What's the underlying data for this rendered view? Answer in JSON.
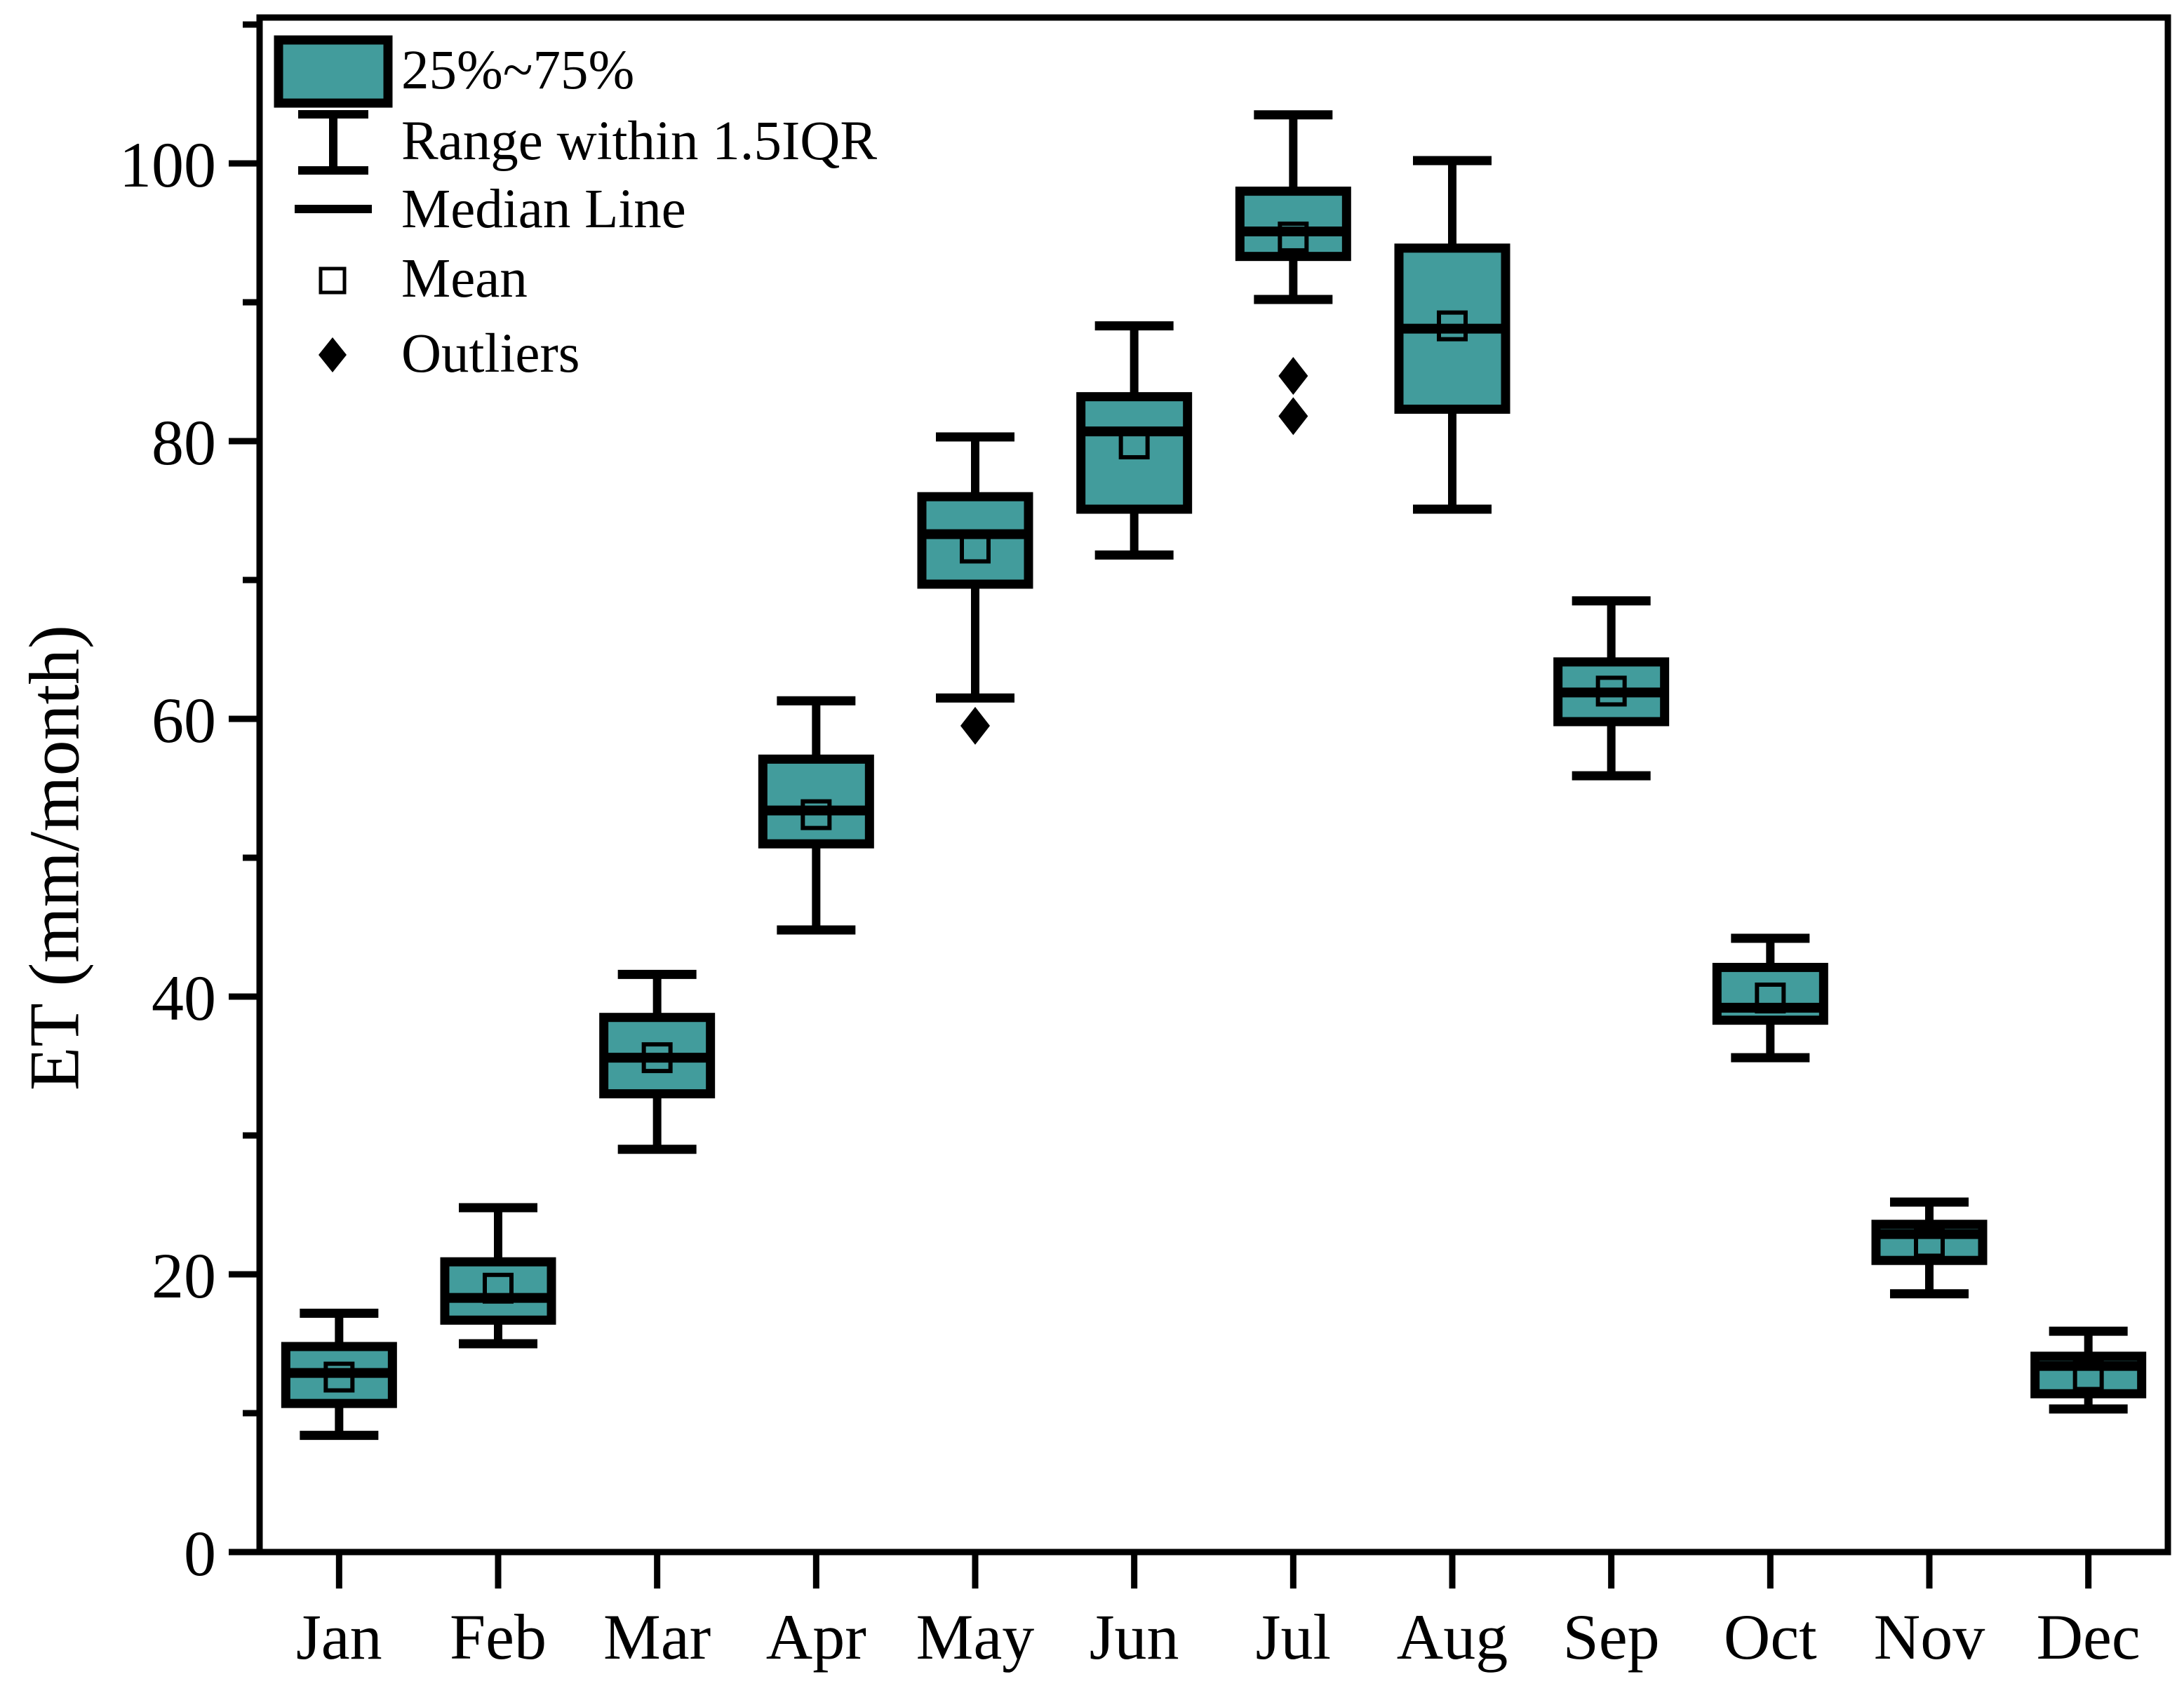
{
  "figure": {
    "background": "#ffffff"
  },
  "colors": {
    "box_fill": "#429C9C",
    "stroke": "#000000"
  },
  "chart_data": {
    "type": "boxplot",
    "title": "",
    "xlabel": "",
    "ylabel": "ET (mm/month)",
    "ylim": [
      0,
      110.5
    ],
    "yticks_major": [
      0,
      20,
      40,
      60,
      80,
      100
    ],
    "yticks_minor": [
      10,
      30,
      50,
      70,
      90,
      110
    ],
    "grid": false,
    "legend_position": "upper-left-inside",
    "legend_labels": [
      "25%~75%",
      "Range within 1.5IQR",
      "Median Line",
      "Mean",
      "Outliers"
    ],
    "categories": [
      "Jan",
      "Feb",
      "Mar",
      "Apr",
      "May",
      "Jun",
      "Jul",
      "Aug",
      "Sep",
      "Oct",
      "Nov",
      "Dec"
    ],
    "boxes": [
      {
        "month": "Jan",
        "whisker_low": 8.4,
        "q1": 10.7,
        "median": 12.9,
        "mean": 12.6,
        "q3": 14.8,
        "whisker_high": 17.2,
        "outliers": []
      },
      {
        "month": "Feb",
        "whisker_low": 15.0,
        "q1": 16.7,
        "median": 18.3,
        "mean": 19.0,
        "q3": 20.9,
        "whisker_high": 24.8,
        "outliers": []
      },
      {
        "month": "Mar",
        "whisker_low": 29.0,
        "q1": 33.0,
        "median": 35.6,
        "mean": 35.6,
        "q3": 38.5,
        "whisker_high": 41.6,
        "outliers": []
      },
      {
        "month": "Apr",
        "whisker_low": 44.8,
        "q1": 51.0,
        "median": 53.4,
        "mean": 53.1,
        "q3": 57.1,
        "whisker_high": 61.3,
        "outliers": []
      },
      {
        "month": "May",
        "whisker_low": 61.5,
        "q1": 69.7,
        "median": 73.3,
        "mean": 72.3,
        "q3": 76.0,
        "whisker_high": 80.3,
        "outliers": [
          59.5
        ]
      },
      {
        "month": "Jun",
        "whisker_low": 71.8,
        "q1": 75.1,
        "median": 80.7,
        "mean": 79.8,
        "q3": 83.2,
        "whisker_high": 88.3,
        "outliers": []
      },
      {
        "month": "Jul",
        "whisker_low": 90.2,
        "q1": 93.3,
        "median": 95.1,
        "mean": 94.7,
        "q3": 98.0,
        "whisker_high": 103.5,
        "outliers": [
          84.7,
          81.8
        ]
      },
      {
        "month": "Aug",
        "whisker_low": 75.1,
        "q1": 82.3,
        "median": 88.1,
        "mean": 88.3,
        "q3": 93.9,
        "whisker_high": 100.2,
        "outliers": []
      },
      {
        "month": "Sep",
        "whisker_low": 55.9,
        "q1": 59.8,
        "median": 61.9,
        "mean": 62.0,
        "q3": 64.1,
        "whisker_high": 68.5,
        "outliers": []
      },
      {
        "month": "Oct",
        "whisker_low": 35.6,
        "q1": 38.3,
        "median": 39.2,
        "mean": 39.9,
        "q3": 42.1,
        "whisker_high": 44.2,
        "outliers": []
      },
      {
        "month": "Nov",
        "whisker_low": 18.6,
        "q1": 21.0,
        "median": 22.9,
        "mean": 22.3,
        "q3": 23.6,
        "whisker_high": 25.2,
        "outliers": []
      },
      {
        "month": "Dec",
        "whisker_low": 10.3,
        "q1": 11.4,
        "median": 13.4,
        "mean": 12.7,
        "q3": 14.1,
        "whisker_high": 15.9,
        "outliers": []
      }
    ]
  }
}
